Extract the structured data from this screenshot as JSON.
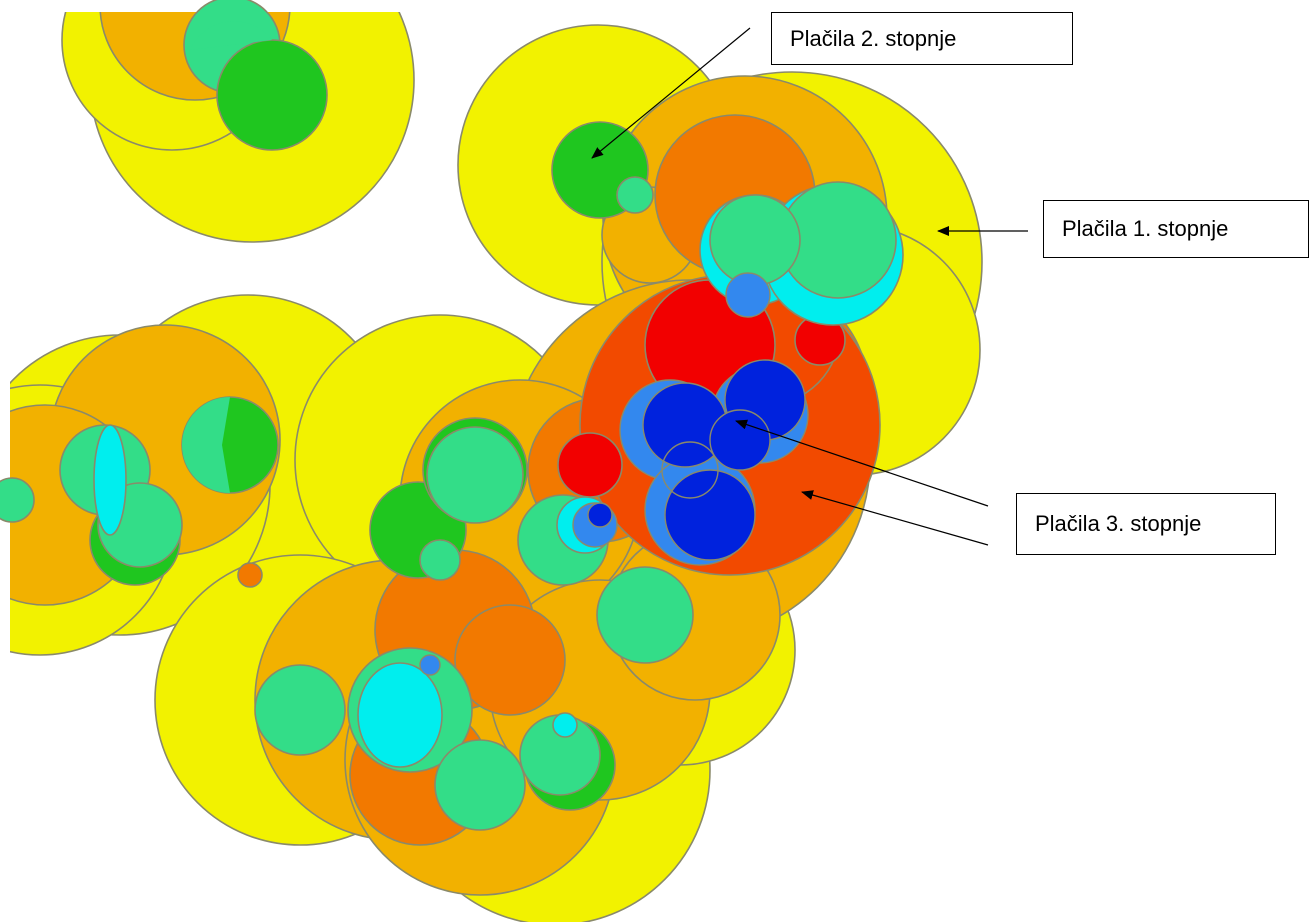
{
  "legend": {
    "level1": "Plačila 1. stopnje",
    "level2": "Plačila 2. stopnje",
    "level3": "Plačila 3. stopnje"
  },
  "colors": {
    "yellow": "#f2f200",
    "orange_light": "#f2b100",
    "orange": "#f27900",
    "red_orange": "#f24a00",
    "red": "#f20000",
    "green": "#1fc61f",
    "mint": "#33dd88",
    "cyan": "#00eeee",
    "blue_light": "#3388ee",
    "blue": "#0022dd",
    "outline": "#8a8a6a"
  }
}
